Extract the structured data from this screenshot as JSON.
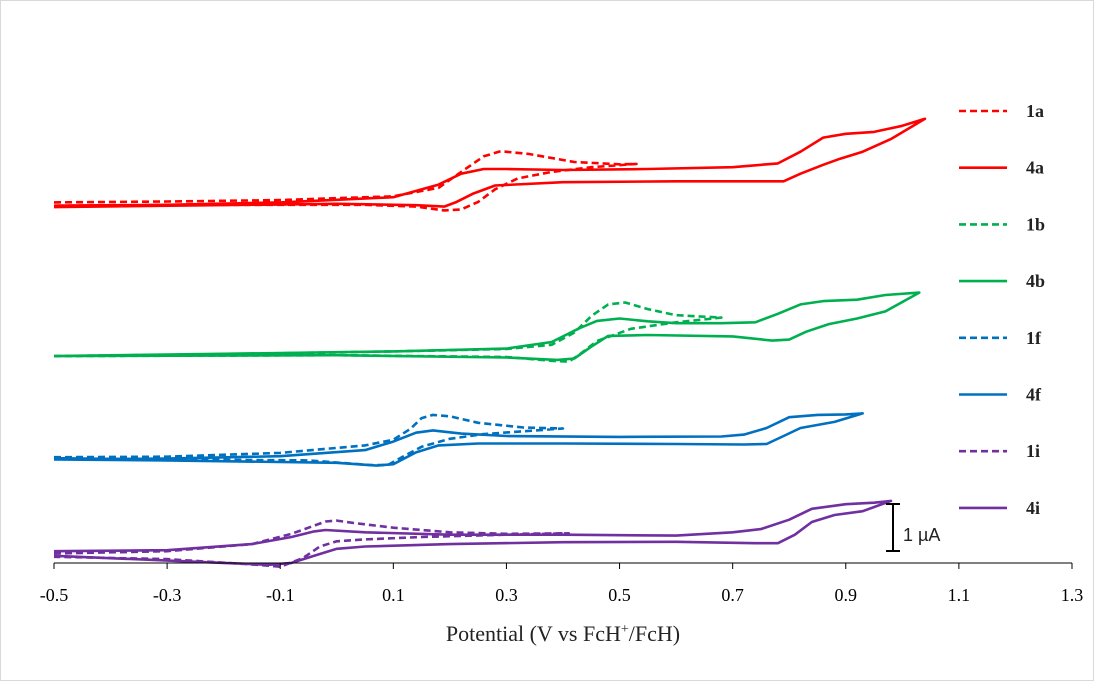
{
  "chart_data": {
    "type": "line",
    "title": "",
    "xlabel": {
      "main": "Potential (V vs FcH",
      "sup": "+",
      "tail": "/FcH)"
    },
    "ylabel": "",
    "xlim": [
      -0.5,
      1.3
    ],
    "x_ticks": [
      "-0.5",
      "-0.3",
      "-0.1",
      "0.1",
      "0.3",
      "0.5",
      "0.7",
      "0.9",
      "1.1",
      "1.3"
    ],
    "scale_bar": "1 µA",
    "legend_position": "right",
    "series": [
      {
        "name": "1a",
        "color": "#ff0000",
        "dash": true,
        "forward": [
          [
            -0.5,
            -0.03
          ],
          [
            -0.3,
            -0.01
          ],
          [
            -0.1,
            0.02
          ],
          [
            0.1,
            0.1
          ],
          [
            0.18,
            0.28
          ],
          [
            0.22,
            0.62
          ],
          [
            0.26,
            0.95
          ],
          [
            0.29,
            1.06
          ],
          [
            0.34,
            1.0
          ],
          [
            0.42,
            0.83
          ],
          [
            0.5,
            0.78
          ],
          [
            0.53,
            0.79
          ]
        ],
        "reverse": [
          [
            0.53,
            0.79
          ],
          [
            0.45,
            0.72
          ],
          [
            0.38,
            0.62
          ],
          [
            0.32,
            0.48
          ],
          [
            0.28,
            0.25
          ],
          [
            0.25,
            -0.02
          ],
          [
            0.22,
            -0.18
          ],
          [
            0.19,
            -0.2
          ],
          [
            0.14,
            -0.12
          ],
          [
            0.05,
            -0.08
          ],
          [
            -0.2,
            -0.08
          ],
          [
            -0.5,
            -0.1
          ]
        ]
      },
      {
        "name": "4a",
        "color": "#ff0000",
        "dash": false,
        "forward": [
          [
            -0.5,
            -0.1
          ],
          [
            -0.3,
            -0.08
          ],
          [
            -0.1,
            -0.03
          ],
          [
            0.1,
            0.08
          ],
          [
            0.18,
            0.35
          ],
          [
            0.22,
            0.58
          ],
          [
            0.26,
            0.68
          ],
          [
            0.3,
            0.68
          ],
          [
            0.4,
            0.66
          ],
          [
            0.55,
            0.68
          ],
          [
            0.7,
            0.72
          ],
          [
            0.78,
            0.8
          ],
          [
            0.82,
            1.05
          ],
          [
            0.86,
            1.35
          ],
          [
            0.9,
            1.43
          ],
          [
            0.95,
            1.47
          ],
          [
            1.0,
            1.6
          ],
          [
            1.04,
            1.75
          ]
        ],
        "reverse": [
          [
            1.04,
            1.75
          ],
          [
            0.98,
            1.32
          ],
          [
            0.93,
            1.05
          ],
          [
            0.89,
            0.9
          ],
          [
            0.86,
            0.77
          ],
          [
            0.82,
            0.58
          ],
          [
            0.79,
            0.42
          ],
          [
            0.74,
            0.42
          ],
          [
            0.6,
            0.42
          ],
          [
            0.4,
            0.4
          ],
          [
            0.28,
            0.33
          ],
          [
            0.24,
            0.15
          ],
          [
            0.21,
            -0.03
          ],
          [
            0.19,
            -0.12
          ],
          [
            0.14,
            -0.09
          ],
          [
            0.0,
            -0.06
          ],
          [
            -0.5,
            -0.13
          ]
        ]
      },
      {
        "name": "1b",
        "color": "#00b050",
        "dash": true,
        "forward": [
          [
            -0.5,
            -3.3
          ],
          [
            -0.2,
            -3.26
          ],
          [
            0.1,
            -3.2
          ],
          [
            0.3,
            -3.15
          ],
          [
            0.38,
            -3.06
          ],
          [
            0.42,
            -2.8
          ],
          [
            0.45,
            -2.45
          ],
          [
            0.48,
            -2.2
          ],
          [
            0.51,
            -2.16
          ],
          [
            0.55,
            -2.3
          ],
          [
            0.6,
            -2.43
          ],
          [
            0.68,
            -2.48
          ]
        ],
        "reverse": [
          [
            0.68,
            -2.48
          ],
          [
            0.6,
            -2.58
          ],
          [
            0.52,
            -2.72
          ],
          [
            0.46,
            -2.98
          ],
          [
            0.43,
            -3.26
          ],
          [
            0.41,
            -3.42
          ],
          [
            0.38,
            -3.4
          ],
          [
            0.3,
            -3.32
          ],
          [
            0.0,
            -3.28
          ],
          [
            -0.5,
            -3.3
          ]
        ]
      },
      {
        "name": "4b",
        "color": "#00b050",
        "dash": false,
        "forward": [
          [
            -0.5,
            -3.3
          ],
          [
            -0.2,
            -3.25
          ],
          [
            0.1,
            -3.2
          ],
          [
            0.3,
            -3.14
          ],
          [
            0.38,
            -3.0
          ],
          [
            0.43,
            -2.7
          ],
          [
            0.46,
            -2.55
          ],
          [
            0.5,
            -2.5
          ],
          [
            0.55,
            -2.56
          ],
          [
            0.6,
            -2.6
          ],
          [
            0.68,
            -2.6
          ],
          [
            0.74,
            -2.58
          ],
          [
            0.78,
            -2.4
          ],
          [
            0.82,
            -2.2
          ],
          [
            0.86,
            -2.13
          ],
          [
            0.92,
            -2.1
          ],
          [
            0.97,
            -2.0
          ],
          [
            1.03,
            -1.95
          ]
        ],
        "reverse": [
          [
            1.03,
            -1.95
          ],
          [
            0.97,
            -2.35
          ],
          [
            0.92,
            -2.5
          ],
          [
            0.87,
            -2.62
          ],
          [
            0.83,
            -2.78
          ],
          [
            0.8,
            -2.95
          ],
          [
            0.77,
            -2.97
          ],
          [
            0.7,
            -2.88
          ],
          [
            0.55,
            -2.85
          ],
          [
            0.48,
            -2.87
          ],
          [
            0.45,
            -3.1
          ],
          [
            0.42,
            -3.35
          ],
          [
            0.39,
            -3.38
          ],
          [
            0.3,
            -3.33
          ],
          [
            0.0,
            -3.28
          ],
          [
            -0.5,
            -3.3
          ]
        ]
      },
      {
        "name": "1f",
        "color": "#0070c0",
        "dash": true,
        "forward": [
          [
            -0.5,
            -5.45
          ],
          [
            -0.3,
            -5.44
          ],
          [
            -0.1,
            -5.36
          ],
          [
            0.05,
            -5.2
          ],
          [
            0.1,
            -5.08
          ],
          [
            0.13,
            -4.85
          ],
          [
            0.15,
            -4.62
          ],
          [
            0.17,
            -4.55
          ],
          [
            0.2,
            -4.58
          ],
          [
            0.25,
            -4.72
          ],
          [
            0.33,
            -4.82
          ],
          [
            0.4,
            -4.84
          ]
        ],
        "reverse": [
          [
            0.4,
            -4.84
          ],
          [
            0.33,
            -4.9
          ],
          [
            0.26,
            -4.96
          ],
          [
            0.2,
            -5.06
          ],
          [
            0.15,
            -5.23
          ],
          [
            0.12,
            -5.42
          ],
          [
            0.09,
            -5.62
          ],
          [
            0.06,
            -5.62
          ],
          [
            -0.05,
            -5.52
          ],
          [
            -0.3,
            -5.5
          ],
          [
            -0.5,
            -5.47
          ]
        ]
      },
      {
        "name": "4f",
        "color": "#0070c0",
        "dash": false,
        "forward": [
          [
            -0.5,
            -5.5
          ],
          [
            -0.3,
            -5.48
          ],
          [
            -0.1,
            -5.43
          ],
          [
            0.05,
            -5.3
          ],
          [
            0.1,
            -5.12
          ],
          [
            0.14,
            -4.93
          ],
          [
            0.17,
            -4.88
          ],
          [
            0.22,
            -4.95
          ],
          [
            0.3,
            -5.0
          ],
          [
            0.5,
            -5.02
          ],
          [
            0.68,
            -5.01
          ],
          [
            0.72,
            -4.97
          ],
          [
            0.76,
            -4.83
          ],
          [
            0.8,
            -4.6
          ],
          [
            0.85,
            -4.55
          ],
          [
            0.9,
            -4.54
          ],
          [
            0.93,
            -4.52
          ]
        ],
        "reverse": [
          [
            0.93,
            -4.52
          ],
          [
            0.88,
            -4.7
          ],
          [
            0.82,
            -4.83
          ],
          [
            0.79,
            -5.0
          ],
          [
            0.76,
            -5.17
          ],
          [
            0.72,
            -5.18
          ],
          [
            0.6,
            -5.17
          ],
          [
            0.4,
            -5.16
          ],
          [
            0.25,
            -5.16
          ],
          [
            0.18,
            -5.2
          ],
          [
            0.14,
            -5.35
          ],
          [
            0.1,
            -5.6
          ],
          [
            0.07,
            -5.63
          ],
          [
            0.0,
            -5.57
          ],
          [
            -0.3,
            -5.52
          ],
          [
            -0.5,
            -5.5
          ]
        ]
      },
      {
        "name": "1i",
        "color": "#7030a0",
        "dash": true,
        "forward": [
          [
            -0.5,
            -7.5
          ],
          [
            -0.3,
            -7.45
          ],
          [
            -0.15,
            -7.3
          ],
          [
            -0.08,
            -7.08
          ],
          [
            -0.05,
            -6.95
          ],
          [
            -0.02,
            -6.82
          ],
          [
            0.0,
            -6.8
          ],
          [
            0.03,
            -6.85
          ],
          [
            0.1,
            -6.95
          ],
          [
            0.2,
            -7.05
          ],
          [
            0.3,
            -7.08
          ],
          [
            0.41,
            -7.07
          ]
        ],
        "reverse": [
          [
            0.41,
            -7.07
          ],
          [
            0.3,
            -7.1
          ],
          [
            0.15,
            -7.15
          ],
          [
            0.05,
            -7.2
          ],
          [
            0.0,
            -7.24
          ],
          [
            -0.03,
            -7.35
          ],
          [
            -0.06,
            -7.6
          ],
          [
            -0.1,
            -7.78
          ],
          [
            -0.14,
            -7.74
          ],
          [
            -0.3,
            -7.62
          ],
          [
            -0.5,
            -7.57
          ]
        ]
      },
      {
        "name": "4i",
        "color": "#7030a0",
        "dash": false,
        "forward": [
          [
            -0.5,
            -7.45
          ],
          [
            -0.3,
            -7.43
          ],
          [
            -0.15,
            -7.3
          ],
          [
            -0.08,
            -7.15
          ],
          [
            -0.04,
            -7.03
          ],
          [
            -0.02,
            -7.0
          ],
          [
            0.05,
            -7.05
          ],
          [
            0.2,
            -7.1
          ],
          [
            0.4,
            -7.1
          ],
          [
            0.6,
            -7.12
          ],
          [
            0.7,
            -7.05
          ],
          [
            0.75,
            -6.98
          ],
          [
            0.8,
            -6.78
          ],
          [
            0.84,
            -6.55
          ],
          [
            0.9,
            -6.45
          ],
          [
            0.95,
            -6.42
          ],
          [
            0.98,
            -6.38
          ]
        ],
        "reverse": [
          [
            0.98,
            -6.38
          ],
          [
            0.93,
            -6.6
          ],
          [
            0.88,
            -6.68
          ],
          [
            0.84,
            -6.83
          ],
          [
            0.81,
            -7.1
          ],
          [
            0.78,
            -7.28
          ],
          [
            0.74,
            -7.28
          ],
          [
            0.6,
            -7.25
          ],
          [
            0.4,
            -7.26
          ],
          [
            0.2,
            -7.3
          ],
          [
            0.05,
            -7.35
          ],
          [
            0.0,
            -7.4
          ],
          [
            -0.04,
            -7.55
          ],
          [
            -0.08,
            -7.7
          ],
          [
            -0.12,
            -7.74
          ],
          [
            -0.2,
            -7.7
          ],
          [
            -0.5,
            -7.55
          ]
        ]
      }
    ]
  }
}
